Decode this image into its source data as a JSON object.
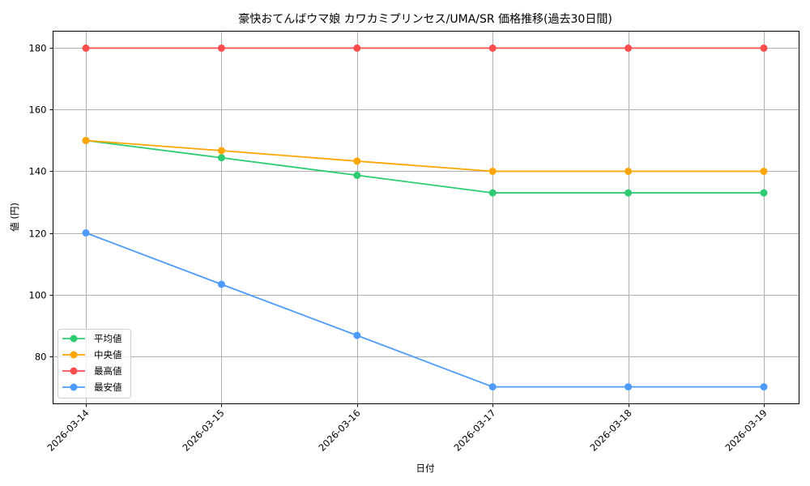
{
  "chart_data": {
    "type": "line",
    "title": "豪快おてんばウマ娘 カワカミプリンセス/UMA/SR 価格推移(過去30日間)",
    "xlabel": "日付",
    "ylabel": "値 (円)",
    "categories": [
      "2026-03-14",
      "2026-03-15",
      "2026-03-16",
      "2026-03-17",
      "2026-03-18",
      "2026-03-19"
    ],
    "series": [
      {
        "name": "平均値",
        "color": "#2ecc71",
        "values": [
          150,
          144.4,
          138.7,
          133,
          133,
          133
        ]
      },
      {
        "name": "中央値",
        "color": "#ffa500",
        "values": [
          150,
          146.7,
          143.3,
          140,
          140,
          140
        ]
      },
      {
        "name": "最高値",
        "color": "#ff4d4d",
        "values": [
          180,
          180,
          180,
          180,
          180,
          180
        ]
      },
      {
        "name": "最安値",
        "color": "#4d9bff",
        "values": [
          120,
          103.3,
          86.7,
          70,
          70,
          70
        ]
      }
    ],
    "yticks": [
      80,
      100,
      120,
      140,
      160,
      180
    ],
    "ylim": [
      64.5,
      185.5
    ],
    "grid": true,
    "legend_position": "lower left",
    "markers": true
  }
}
